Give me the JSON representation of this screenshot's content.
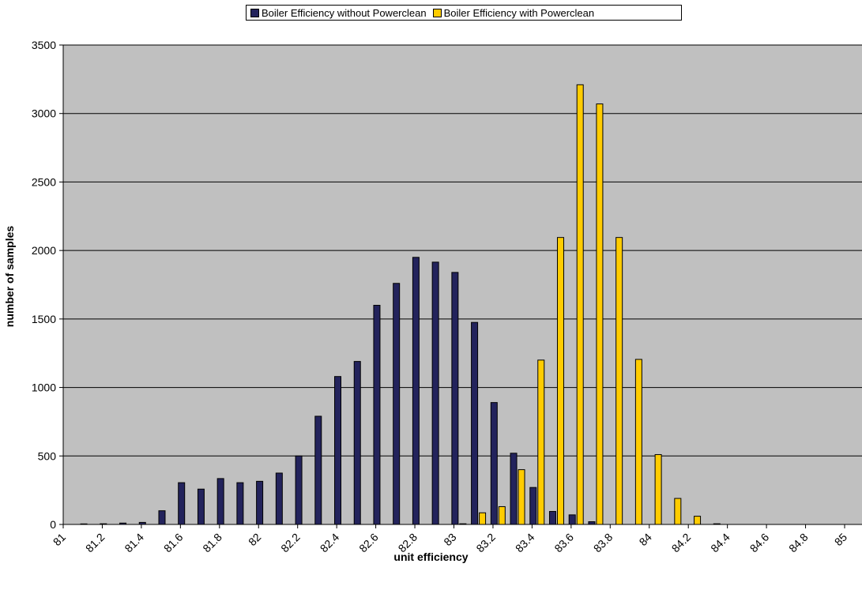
{
  "chart_data": {
    "type": "bar",
    "xlabel": "unit efficiency",
    "ylabel": "number of samples",
    "ylim": [
      0,
      3500
    ],
    "yticks": [
      0,
      500,
      1000,
      1500,
      2000,
      2500,
      3000,
      3500
    ],
    "categories": [
      "81",
      "81.1",
      "81.2",
      "81.3",
      "81.4",
      "81.5",
      "81.6",
      "81.7",
      "81.8",
      "81.9",
      "82",
      "82.1",
      "82.2",
      "82.3",
      "82.4",
      "82.5",
      "82.6",
      "82.7",
      "82.8",
      "82.9",
      "83",
      "83.1",
      "83.2",
      "83.3",
      "83.4",
      "83.5",
      "83.6",
      "83.7",
      "83.8",
      "83.9",
      "84",
      "84.1",
      "84.2",
      "84.3",
      "84.4",
      "84.5",
      "84.6",
      "84.7",
      "84.8",
      "84.9",
      "85"
    ],
    "xtick_labels": [
      "81",
      "81.2",
      "81.4",
      "81.6",
      "81.8",
      "82",
      "82.2",
      "82.4",
      "82.6",
      "82.8",
      "83",
      "83.2",
      "83.4",
      "83.6",
      "83.8",
      "84",
      "84.2",
      "84.4",
      "84.6",
      "84.8",
      "85"
    ],
    "grid": true,
    "legend_position": "top",
    "background": "#c0c0c0",
    "series": [
      {
        "name": "Boiler Efficiency without Powerclean",
        "color": "#23235c",
        "values": [
          0,
          4,
          5,
          10,
          15,
          100,
          305,
          258,
          335,
          305,
          315,
          375,
          500,
          790,
          1080,
          1190,
          1600,
          1760,
          1950,
          1915,
          1840,
          1475,
          890,
          520,
          270,
          95,
          70,
          20,
          0,
          0,
          0,
          0,
          0,
          0,
          0,
          0,
          0,
          0,
          0,
          0,
          0
        ]
      },
      {
        "name": "Boiler Efficiency with Powerclean",
        "color": "#ffcc00",
        "values": [
          0,
          0,
          0,
          0,
          0,
          0,
          0,
          0,
          0,
          0,
          0,
          0,
          0,
          0,
          0,
          0,
          0,
          0,
          0,
          0,
          5,
          85,
          130,
          400,
          1200,
          2095,
          3210,
          3070,
          2095,
          1205,
          510,
          190,
          60,
          5,
          0,
          0,
          0,
          0,
          0,
          0,
          0
        ]
      }
    ]
  }
}
